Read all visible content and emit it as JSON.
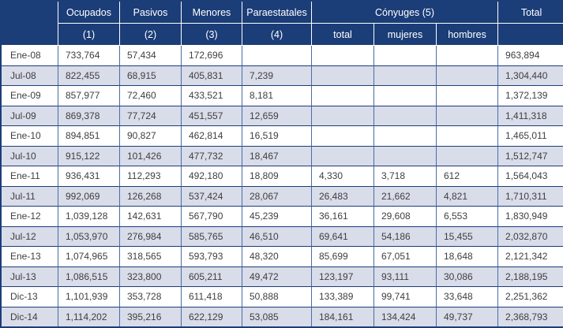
{
  "colors": {
    "header_bg": "#1b3d78",
    "stripe_bg": "#d9dce9",
    "grid_vertical": "#4a6da4",
    "grid_horizontal": "#1b3d78",
    "header_text": "#ffffff",
    "body_text": "#3f3f3f"
  },
  "header": {
    "groups": [
      {
        "label": "Ocupados",
        "sub": "(1)"
      },
      {
        "label": "Pasivos",
        "sub": "(2)"
      },
      {
        "label": "Menores",
        "sub": "(3)"
      },
      {
        "label": "Paraestatales",
        "sub": "(4)"
      },
      {
        "label": "Cónyuges (5)",
        "subs": [
          "total",
          "mujeres",
          "hombres"
        ]
      },
      {
        "label": "Total",
        "sub": ""
      }
    ]
  },
  "rows": [
    {
      "period": "Ene-08",
      "values": [
        "733,764",
        "57,434",
        "172,696",
        "",
        "",
        "",
        "",
        "963,894"
      ]
    },
    {
      "period": "Jul-08",
      "values": [
        "822,455",
        "68,915",
        "405,831",
        "7,239",
        "",
        "",
        "",
        "1,304,440"
      ]
    },
    {
      "period": "Ene-09",
      "values": [
        "857,977",
        "72,460",
        "433,521",
        "8,181",
        "",
        "",
        "",
        "1,372,139"
      ]
    },
    {
      "period": "Jul-09",
      "values": [
        "869,378",
        "77,724",
        "451,557",
        "12,659",
        "",
        "",
        "",
        "1,411,318"
      ]
    },
    {
      "period": "Ene-10",
      "values": [
        "894,851",
        "90,827",
        "462,814",
        "16,519",
        "",
        "",
        "",
        "1,465,011"
      ]
    },
    {
      "period": "Jul-10",
      "values": [
        "915,122",
        "101,426",
        "477,732",
        "18,467",
        "",
        "",
        "",
        "1,512,747"
      ]
    },
    {
      "period": "Ene-11",
      "values": [
        "936,431",
        "112,293",
        "492,180",
        "18,809",
        "4,330",
        "3,718",
        "612",
        "1,564,043"
      ]
    },
    {
      "period": "Jul-11",
      "values": [
        "992,069",
        "126,268",
        "537,424",
        "28,067",
        "26,483",
        "21,662",
        "4,821",
        "1,710,311"
      ]
    },
    {
      "period": "Ene-12",
      "values": [
        "1,039,128",
        "142,631",
        "567,790",
        "45,239",
        "36,161",
        "29,608",
        "6,553",
        "1,830,949"
      ]
    },
    {
      "period": "Jul-12",
      "values": [
        "1,053,970",
        "276,984",
        "585,765",
        "46,510",
        "69,641",
        "54,186",
        "15,455",
        "2,032,870"
      ]
    },
    {
      "period": "Ene-13",
      "values": [
        "1,074,965",
        "318,565",
        "593,793",
        "48,320",
        "85,699",
        "67,051",
        "18,648",
        "2,121,342"
      ]
    },
    {
      "period": "Jul-13",
      "values": [
        "1,086,515",
        "323,800",
        "605,211",
        "49,472",
        "123,197",
        "93,111",
        "30,086",
        "2,188,195"
      ]
    },
    {
      "period": "Dic-13",
      "values": [
        "1,101,939",
        "353,728",
        "611,418",
        "50,888",
        "133,389",
        "99,741",
        "33,648",
        "2,251,362"
      ]
    },
    {
      "period": "Dic-14",
      "values": [
        "1,114,202",
        "395,216",
        "622,129",
        "53,085",
        "184,161",
        "134,424",
        "49,737",
        "2,368,793"
      ]
    }
  ]
}
